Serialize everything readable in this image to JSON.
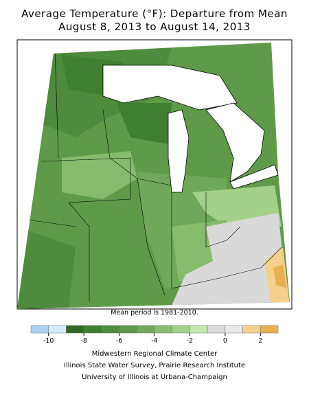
{
  "header": {
    "title": "Average Temperature (°F): Departure from Mean",
    "subtitle": "August 8, 2013 to August 14, 2013"
  },
  "map": {
    "note": "Mean period is 1981-2010."
  },
  "legend": {
    "range": [
      -11,
      3
    ],
    "colors": [
      "#a9d0f5",
      "#d4ecfb",
      "#2d6a1f",
      "#3f7f2f",
      "#4e8b3c",
      "#5f9a49",
      "#6fa858",
      "#86bc6c",
      "#a3d18a",
      "#c3e6ae",
      "#d9d9d9",
      "#e8e8e8",
      "#f5d08c",
      "#e8b050"
    ],
    "ticks": [
      -10,
      -8,
      -6,
      -4,
      -2,
      0,
      2
    ]
  },
  "footer": {
    "lines": [
      "Midwestern Regional Climate Center",
      "Illinois State Water Survey, Prairie Research Institute",
      "University of Illinois at Urbana-Champaign"
    ]
  }
}
